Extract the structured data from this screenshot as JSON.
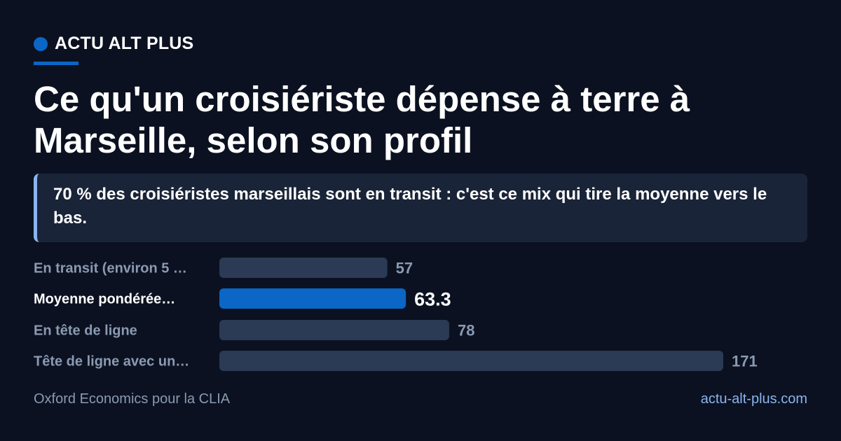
{
  "brand": {
    "name": "ACTU ALT PLUS"
  },
  "title": "Ce qu'un croisiériste dépense à terre à Marseille, selon son profil",
  "callout": "70 % des croisiéristes marseillais sont en transit : c'est ce mix qui tire la moyenne vers le bas.",
  "footer": {
    "source": "Oxford Economics pour la CLIA",
    "site": "actu-alt-plus.com"
  },
  "colors": {
    "background": "#0b1120",
    "accent": "#0b66c6",
    "bar": "#2b3a55",
    "label_muted": "#8a9ab2",
    "label_highlight": "#ffffff"
  },
  "chart_data": {
    "type": "bar",
    "orientation": "horizontal",
    "categories": [
      "En transit (environ 5 …",
      "Moyenne pondérée…",
      "En tête de ligne",
      "Tête de ligne avec un…"
    ],
    "values": [
      57,
      63.3,
      78,
      171
    ],
    "value_labels": [
      "57",
      "63.3",
      "78",
      "171"
    ],
    "highlight_index": 1,
    "title": "",
    "xlabel": "",
    "ylabel": "",
    "xlim": [
      0,
      171
    ]
  }
}
